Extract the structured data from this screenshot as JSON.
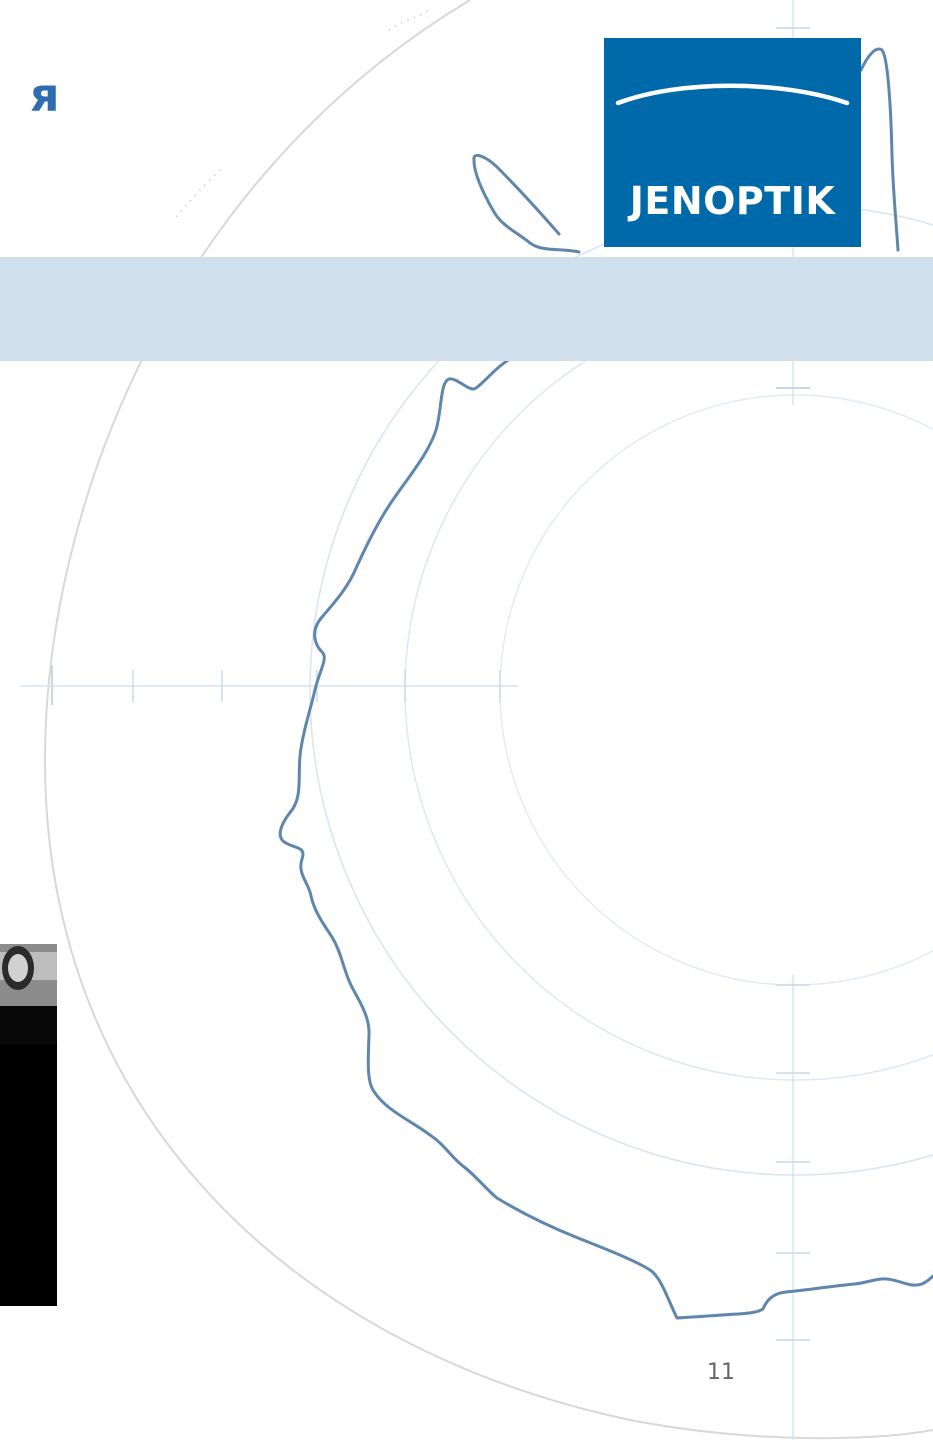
{
  "slide": {
    "title_fragment": "я",
    "page_number": "11"
  },
  "logo": {
    "text": "JENOPTIK",
    "background_color": "#0069a9",
    "text_color": "#ffffff"
  },
  "theme": {
    "header_band_color": "#cfdfec",
    "profile_line_color": "#5f86ad",
    "grid_color": "#d9e4ee"
  },
  "icons": {
    "background": "polar-roundness-plot-graphic",
    "photo": "photo-thumbnail-icon"
  }
}
